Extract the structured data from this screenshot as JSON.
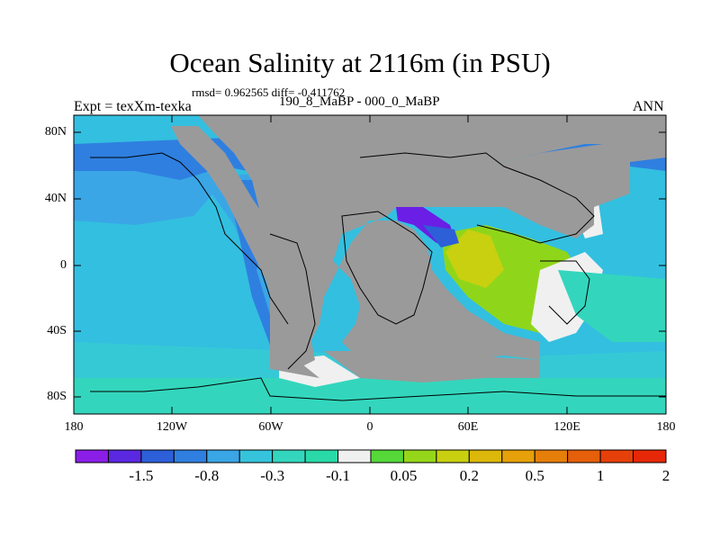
{
  "header": {
    "title": "Ocean Salinity at 2116m (in PSU)",
    "stats": "rmsd= 0.962565 diff= -0.411762",
    "experiment": "Expt = texXm-texka",
    "comparison": "190_8_MaBP - 000_0_MaBP",
    "season": "ANN"
  },
  "axes": {
    "lat_labels": [
      "80N",
      "40N",
      "0",
      "40S",
      "80S"
    ],
    "lon_labels": [
      "180",
      "120W",
      "60W",
      "0",
      "60E",
      "120E",
      "180"
    ]
  },
  "colorbar": {
    "labels": [
      "-1.5",
      "-0.8",
      "-0.3",
      "-0.1",
      "0.05",
      "0.2",
      "0.5",
      "1",
      "2"
    ],
    "colors": [
      "#8a1ee6",
      "#5a28e0",
      "#2c5fd8",
      "#2f7fe0",
      "#3aa6e6",
      "#35c4dc",
      "#33d6bd",
      "#2ad9a8",
      "#f0f0f0",
      "#55d838",
      "#96d61a",
      "#c8d010",
      "#dcb80a",
      "#e6a00a",
      "#e67e0a",
      "#e65f0a",
      "#e6400a",
      "#e62808"
    ]
  },
  "colors": {
    "land": "#9a9a9a",
    "ocean_base": "#33bfe0",
    "ocean_north": "#3aa6e6",
    "ocean_deep_blue": "#2f7fe0",
    "southern_ocean": "#35c9d6",
    "anomaly_purple": "#6a1ee6",
    "anomaly_green": "#8fd61a",
    "anomaly_white": "#f0f0f0"
  }
}
